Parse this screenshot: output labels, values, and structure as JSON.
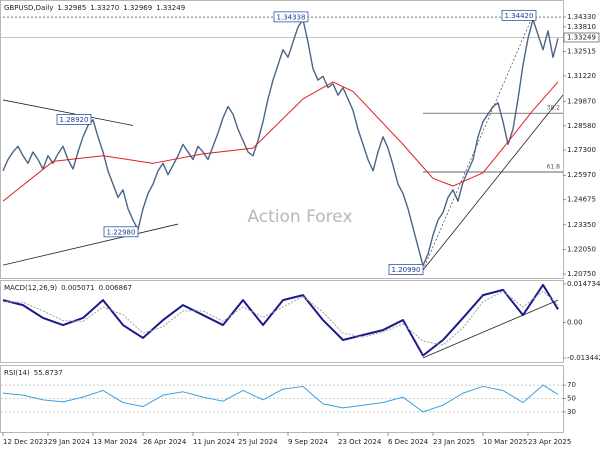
{
  "chart_data": [
    {
      "type": "line",
      "title": "GBPUSD,Daily",
      "header_values": [
        1.32985,
        1.3327,
        1.32969,
        1.33249
      ],
      "header_value_labels": [
        "1.32985",
        "1.33270",
        "1.32969",
        "1.33249"
      ],
      "watermark": "Action Forex",
      "current_price": 1.33249,
      "xlim": [
        0,
        112
      ],
      "xticks": [
        {
          "value": 0,
          "label": "12 Dec 2023"
        },
        {
          "value": 9,
          "label": "29 Jan 2024"
        },
        {
          "value": 18,
          "label": "13 Mar 2024"
        },
        {
          "value": 28,
          "label": "26 Apr 2024"
        },
        {
          "value": 38,
          "label": "11 Jun 2024"
        },
        {
          "value": 47,
          "label": "25 Jul 2024"
        },
        {
          "value": 57,
          "label": "9 Sep 2024"
        },
        {
          "value": 67,
          "label": "23 Oct 2024"
        },
        {
          "value": 77,
          "label": "6 Dec 2024"
        },
        {
          "value": 86,
          "label": "23 Jan 2025"
        },
        {
          "value": 96,
          "label": "10 Mar 2025"
        },
        {
          "value": 105,
          "label": "23 Apr 2025"
        }
      ],
      "ylim": [
        1.2054,
        1.3523
      ],
      "yticks": [
        {
          "value": 1.3433,
          "label": "1.34330"
        },
        {
          "value": 1.3381,
          "label": "1.33810"
        },
        1.32515,
        {
          "value": 1.3122,
          "label": "1.31220"
        },
        {
          "value": 1.2987,
          "label": "1.29870"
        },
        {
          "value": 1.2858,
          "label": "1.28580"
        },
        {
          "value": 1.273,
          "label": "1.27300"
        },
        {
          "value": 1.2597,
          "label": "1.25970"
        },
        1.24675,
        {
          "value": 1.2335,
          "label": "1.23350"
        },
        {
          "value": 1.2205,
          "label": "1.22050"
        },
        {
          "value": 1.2075,
          "label": "1.20750"
        }
      ],
      "series": [
        {
          "color": "#4a6585",
          "width": 1.4,
          "values": [
            1.262,
            1.268,
            1.272,
            1.275,
            1.27,
            1.266,
            1.272,
            1.268,
            1.263,
            1.27,
            1.266,
            1.271,
            1.275,
            1.268,
            1.263,
            1.272,
            1.28,
            1.286,
            1.289,
            1.28,
            1.272,
            1.262,
            1.255,
            1.248,
            1.252,
            1.242,
            1.236,
            1.231,
            1.242,
            1.25,
            1.255,
            1.262,
            1.266,
            1.26,
            1.265,
            1.27,
            1.276,
            1.272,
            1.268,
            1.275,
            1.272,
            1.268,
            1.275,
            1.282,
            1.29,
            1.296,
            1.292,
            1.284,
            1.278,
            1.272,
            1.27,
            1.278,
            1.288,
            1.3,
            1.31,
            1.318,
            1.326,
            1.322,
            1.33,
            1.338,
            1.342,
            1.33,
            1.316,
            1.31,
            1.312,
            1.306,
            1.308,
            1.302,
            1.306,
            1.3,
            1.294,
            1.284,
            1.276,
            1.268,
            1.262,
            1.272,
            1.28,
            1.274,
            1.265,
            1.255,
            1.25,
            1.242,
            1.232,
            1.222,
            1.212,
            1.218,
            1.228,
            1.236,
            1.24,
            1.248,
            1.252,
            1.246,
            1.256,
            1.262,
            1.268,
            1.28,
            1.288,
            1.292,
            1.296,
            1.298,
            1.288,
            1.276,
            1.284,
            1.3,
            1.318,
            1.332,
            1.342,
            1.334,
            1.326,
            1.336,
            1.322,
            1.332
          ]
        },
        {
          "color": "#e02020",
          "width": 1,
          "x": [
            0,
            10,
            20,
            30,
            40,
            50,
            60,
            66,
            70,
            80,
            86,
            90,
            96,
            100,
            106,
            111
          ],
          "values": [
            1.246,
            1.267,
            1.27,
            1.266,
            1.271,
            1.274,
            1.3,
            1.309,
            1.304,
            1.276,
            1.258,
            1.254,
            1.261,
            1.274,
            1.294,
            1.309
          ]
        }
      ],
      "trendlines": [
        {
          "x": [
            0,
            26
          ],
          "y": [
            1.2995,
            1.286
          ]
        },
        {
          "x": [
            0,
            35
          ],
          "y": [
            1.2122,
            1.2339
          ]
        },
        {
          "x": [
            84,
            112
          ],
          "y": [
            1.2096,
            1.3021
          ]
        },
        {
          "x": [
            84,
            106
          ],
          "y": [
            1.2096,
            1.3442
          ],
          "dash": true
        },
        {
          "x": [
            0,
            112
          ],
          "y": [
            1.3433,
            1.3433
          ],
          "dash": true
        }
      ],
      "fib_levels": [
        {
          "value": 1.2925,
          "label": "38.2",
          "x": [
            84,
            112
          ]
        },
        {
          "value": 1.2614,
          "label": "61.8",
          "x": [
            84,
            112
          ]
        }
      ],
      "annotations": [
        {
          "value": 1.34338,
          "x": 61
        },
        {
          "value": 1.3442,
          "label": "1.34420",
          "x": 106.6
        },
        {
          "value": 1.2892,
          "label": "1.28920",
          "x": 17.6
        },
        {
          "value": 1.2298,
          "label": "1.22980",
          "x": 27
        },
        {
          "value": 1.2099,
          "label": "1.20990",
          "x": 84
        }
      ]
    },
    {
      "type": "line",
      "title": "MACD(12,26,9)",
      "header_values": [
        0.005071,
        0.006867
      ],
      "ylim": [
        -0.01497,
        0.01626
      ],
      "yticks": [
        0.014734,
        {
          "value": 0,
          "label": "0.00"
        },
        -0.013442
      ],
      "x": [
        0,
        4,
        8,
        12,
        16,
        20,
        24,
        28,
        32,
        36,
        40,
        44,
        48,
        52,
        56,
        60,
        64,
        68,
        72,
        76,
        80,
        84,
        88,
        92,
        96,
        100,
        104,
        108,
        111
      ],
      "series": [
        {
          "color": "#1a1a8c",
          "width": 2,
          "values": [
            0.0086,
            0.0067,
            0.0018,
            -0.0009,
            0.0018,
            0.0086,
            -0.0009,
            -0.0058,
            0.001,
            0.0067,
            0.0029,
            -0.0009,
            0.0086,
            -0.0009,
            0.0086,
            0.0105,
            0.001,
            -0.0066,
            -0.0047,
            -0.0028,
            0.001,
            -0.0125,
            -0.0066,
            0.0018,
            0.0105,
            0.0125,
            0.0029,
            0.0144,
            0.0051
          ]
        },
        {
          "color": "#a0a0a0",
          "width": 1,
          "dash": true,
          "values": [
            0.008,
            0.0078,
            0.0045,
            0.0008,
            0.0005,
            0.006,
            0.003,
            -0.004,
            -0.0015,
            0.0045,
            0.0045,
            0.0005,
            0.006,
            0.002,
            0.006,
            0.01,
            0.004,
            -0.004,
            -0.0055,
            -0.0035,
            -0.0005,
            -0.007,
            -0.0085,
            -0.002,
            0.008,
            0.012,
            0.006,
            0.012,
            0.0069
          ]
        }
      ],
      "trendlines": [
        {
          "x": [
            84,
            111
          ],
          "y": [
            -0.0134,
            0.0086
          ]
        }
      ]
    },
    {
      "type": "line",
      "title": "RSI(14)",
      "header_values": [
        55.8737
      ],
      "ylim": [
        0,
        100
      ],
      "yticks": [
        30,
        50,
        70
      ],
      "grid": true,
      "x": [
        0,
        4,
        8,
        12,
        16,
        20,
        24,
        28,
        32,
        36,
        40,
        44,
        48,
        52,
        56,
        60,
        64,
        68,
        72,
        76,
        80,
        84,
        88,
        92,
        96,
        100,
        104,
        108,
        111
      ],
      "series": [
        {
          "color": "#3ca0e0",
          "width": 1,
          "values": [
            58,
            55,
            48,
            45,
            52,
            62,
            44,
            38,
            55,
            60,
            52,
            46,
            62,
            48,
            64,
            68,
            42,
            36,
            40,
            44,
            52,
            30,
            40,
            58,
            68,
            62,
            44,
            70,
            56
          ]
        }
      ]
    }
  ]
}
